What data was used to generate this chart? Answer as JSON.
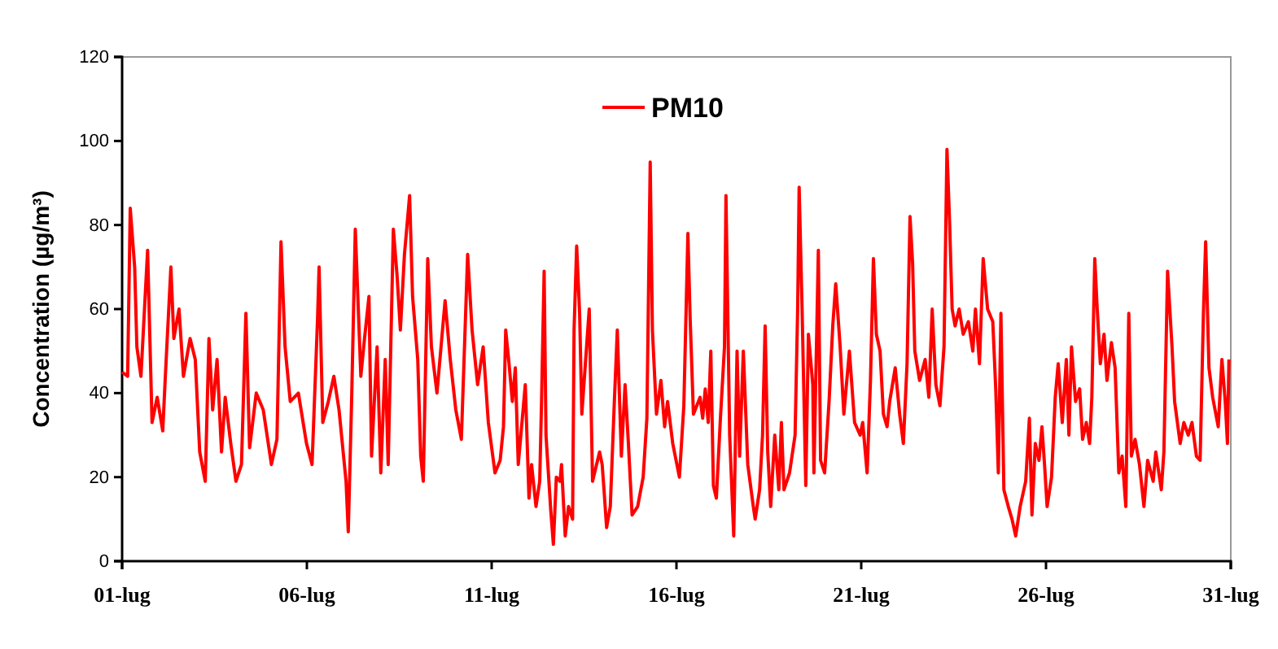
{
  "chart_data": {
    "type": "line",
    "ylabel": "Concentration (µg/m³)",
    "ylim": [
      0,
      120
    ],
    "yticks": [
      0,
      20,
      40,
      60,
      80,
      100,
      120
    ],
    "xlim": [
      1,
      31
    ],
    "xticks": [
      {
        "value": 1,
        "label": "01-lug"
      },
      {
        "value": 6,
        "label": "06-lug"
      },
      {
        "value": 11,
        "label": "11-lug"
      },
      {
        "value": 16,
        "label": "16-lug"
      },
      {
        "value": 21,
        "label": "21-lug"
      },
      {
        "value": 26,
        "label": "26-lug"
      },
      {
        "value": 31,
        "label": "31-lug"
      }
    ],
    "legend": "top",
    "grid": false,
    "marker": "none",
    "line_style": "solid",
    "series": [
      {
        "name": "PM10",
        "color": "#ff0000",
        "x": [
          1.0,
          1.15,
          1.22,
          1.34,
          1.4,
          1.51,
          1.69,
          1.81,
          1.95,
          2.1,
          2.17,
          2.32,
          2.4,
          2.54,
          2.66,
          2.84,
          2.98,
          3.1,
          3.25,
          3.35,
          3.45,
          3.57,
          3.69,
          3.79,
          3.94,
          4.08,
          4.23,
          4.35,
          4.45,
          4.63,
          4.82,
          5.04,
          5.19,
          5.3,
          5.41,
          5.55,
          5.77,
          5.99,
          6.14,
          6.29,
          6.33,
          6.43,
          6.58,
          6.73,
          6.87,
          7.06,
          7.12,
          7.21,
          7.31,
          7.46,
          7.56,
          7.68,
          7.75,
          7.9,
          8.0,
          8.12,
          8.2,
          8.34,
          8.44,
          8.53,
          8.64,
          8.78,
          8.86,
          9.0,
          9.08,
          9.15,
          9.27,
          9.37,
          9.52,
          9.74,
          9.88,
          10.03,
          10.18,
          10.35,
          10.47,
          10.62,
          10.77,
          10.91,
          11.03,
          11.09,
          11.23,
          11.32,
          11.38,
          11.47,
          11.56,
          11.64,
          11.72,
          11.91,
          12.01,
          12.08,
          12.2,
          12.3,
          12.35,
          12.42,
          12.47,
          12.6,
          12.67,
          12.75,
          12.85,
          12.89,
          12.99,
          13.08,
          13.19,
          13.23,
          13.3,
          13.38,
          13.44,
          13.64,
          13.73,
          13.92,
          13.99,
          14.04,
          14.11,
          14.21,
          14.32,
          14.4,
          14.51,
          14.61,
          14.7,
          14.8,
          14.95,
          15.1,
          15.2,
          15.29,
          15.35,
          15.46,
          15.58,
          15.68,
          15.76,
          15.9,
          16.08,
          16.2,
          16.31,
          16.37,
          16.46,
          16.64,
          16.71,
          16.78,
          16.86,
          16.93,
          17.0,
          17.08,
          17.19,
          17.3,
          17.34,
          17.44,
          17.55,
          17.64,
          17.71,
          17.81,
          17.93,
          18.08,
          18.13,
          18.25,
          18.33,
          18.4,
          18.47,
          18.55,
          18.66,
          18.77,
          18.84,
          18.91,
          19.06,
          19.21,
          19.28,
          19.32,
          19.4,
          19.5,
          19.57,
          19.69,
          19.72,
          19.84,
          19.9,
          20.01,
          20.13,
          20.23,
          20.31,
          20.43,
          20.53,
          20.68,
          20.82,
          20.97,
          21.04,
          21.16,
          21.25,
          21.33,
          21.41,
          21.51,
          21.6,
          21.7,
          21.77,
          21.92,
          22.04,
          22.14,
          22.24,
          22.32,
          22.39,
          22.45,
          22.58,
          22.73,
          22.83,
          22.92,
          23.02,
          23.13,
          23.24,
          23.32,
          23.39,
          23.46,
          23.54,
          23.65,
          23.76,
          23.9,
          24.02,
          24.09,
          24.2,
          24.3,
          24.42,
          24.56,
          24.64,
          24.71,
          24.78,
          24.86,
          24.98,
          25.08,
          25.18,
          25.3,
          25.45,
          25.55,
          25.62,
          25.71,
          25.81,
          25.89,
          25.96,
          26.03,
          26.15,
          26.25,
          26.33,
          26.44,
          26.55,
          26.62,
          26.69,
          26.8,
          26.91,
          26.99,
          27.09,
          27.18,
          27.24,
          27.32,
          27.38,
          27.47,
          27.57,
          27.65,
          27.77,
          27.87,
          27.97,
          28.06,
          28.16,
          28.24,
          28.31,
          28.41,
          28.53,
          28.65,
          28.75,
          28.9,
          28.97,
          29.12,
          29.19,
          29.29,
          29.41,
          29.48,
          29.63,
          29.73,
          29.85,
          29.95,
          30.07,
          30.17,
          30.26,
          30.32,
          30.41,
          30.51,
          30.66,
          30.76,
          30.85,
          30.91,
          30.95
        ],
        "values": [
          45,
          44,
          84,
          70,
          51,
          44,
          74,
          33,
          39,
          31,
          44,
          70,
          53,
          60,
          44,
          53,
          48,
          26,
          19,
          53,
          36,
          48,
          26,
          39,
          28,
          19,
          23,
          59,
          27,
          40,
          36,
          23,
          29,
          76,
          51,
          38,
          40,
          28,
          23,
          58,
          70,
          33,
          38,
          44,
          36,
          19,
          7,
          38,
          79,
          44,
          53,
          63,
          25,
          51,
          21,
          48,
          23,
          79,
          68,
          55,
          73,
          87,
          63,
          48,
          25,
          19,
          72,
          51,
          40,
          62,
          48,
          36,
          29,
          73,
          55,
          42,
          51,
          33,
          25,
          21,
          24,
          32,
          55,
          47,
          38,
          46,
          23,
          42,
          15,
          23,
          13,
          19,
          38,
          69,
          30,
          12,
          4,
          20,
          19,
          23,
          6,
          13,
          10,
          55,
          75,
          59,
          35,
          60,
          19,
          26,
          23,
          17,
          8,
          13,
          38,
          55,
          25,
          42,
          28,
          11,
          13,
          20,
          34,
          95,
          55,
          35,
          43,
          32,
          38,
          28,
          20,
          37,
          78,
          58,
          35,
          39,
          34,
          41,
          33,
          50,
          18,
          15,
          34,
          51,
          87,
          30,
          6,
          50,
          25,
          50,
          23,
          13,
          10,
          17,
          30,
          56,
          26,
          13,
          30,
          17,
          33,
          17,
          21,
          30,
          60,
          89,
          60,
          18,
          54,
          42,
          21,
          74,
          24,
          21,
          38,
          56,
          66,
          51,
          35,
          50,
          33,
          30,
          33,
          21,
          43,
          72,
          54,
          50,
          35,
          32,
          38,
          46,
          35,
          28,
          47,
          82,
          71,
          50,
          43,
          48,
          39,
          60,
          42,
          37,
          51,
          98,
          81,
          60,
          56,
          60,
          54,
          57,
          50,
          60,
          47,
          72,
          60,
          57,
          41,
          21,
          59,
          17,
          13,
          10,
          6,
          13,
          19,
          34,
          11,
          28,
          24,
          32,
          23,
          13,
          20,
          39,
          47,
          33,
          48,
          30,
          51,
          38,
          41,
          29,
          33,
          28,
          39,
          72,
          61,
          47,
          54,
          43,
          52,
          46,
          21,
          25,
          13,
          59,
          25,
          29,
          23,
          13,
          24,
          19,
          26,
          17,
          26,
          69,
          51,
          38,
          28,
          33,
          30,
          33,
          25,
          24,
          59,
          76,
          46,
          39,
          32,
          48,
          38,
          28,
          48
        ]
      }
    ]
  }
}
